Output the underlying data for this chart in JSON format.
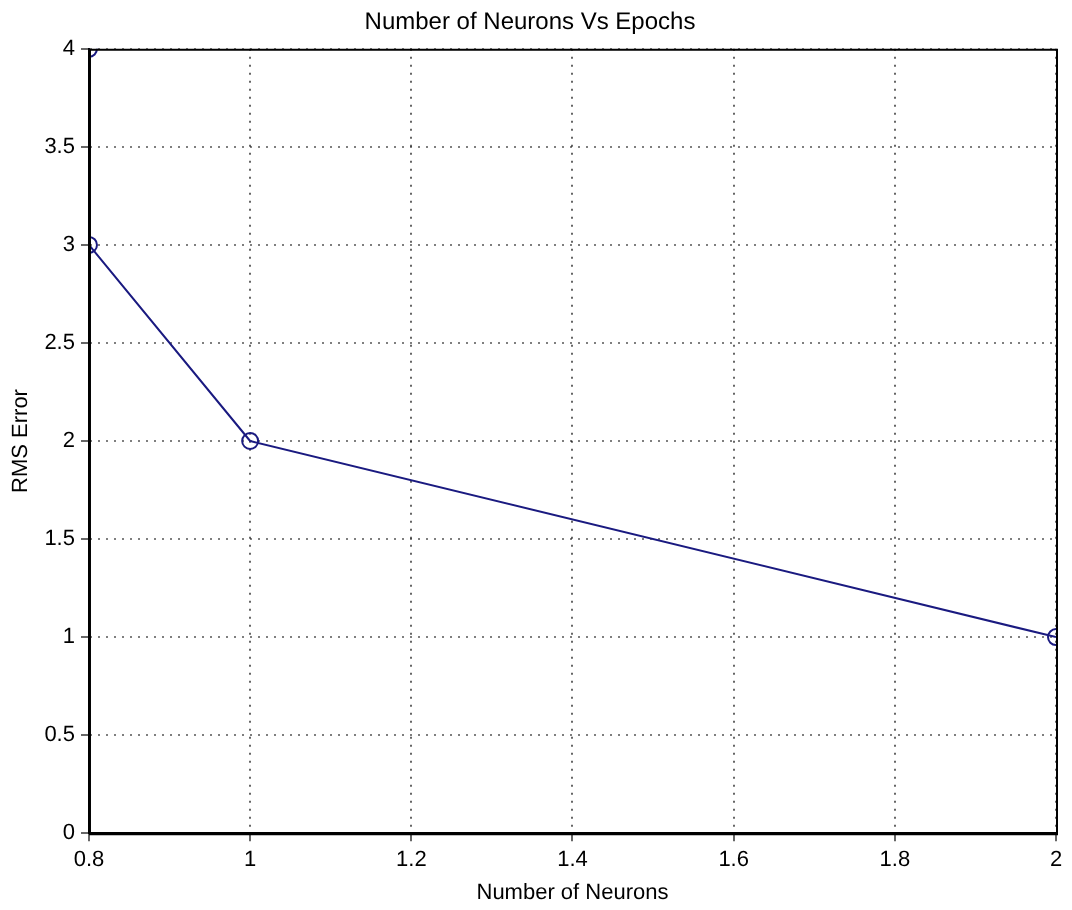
{
  "chart_data": {
    "type": "line",
    "title": "Number of Neurons Vs Epochs",
    "xlabel": "Number of Neurons",
    "ylabel": "RMS Error",
    "x": [
      0.8,
      0.8,
      1,
      2
    ],
    "series": [
      {
        "color": "#1a1a80",
        "values": [
          4,
          3,
          2,
          1
        ]
      }
    ],
    "xlim": [
      0.8,
      2
    ],
    "xticks": [
      0.8,
      1,
      1.2,
      1.4,
      1.6,
      1.8,
      2
    ],
    "ylim": [
      0,
      4
    ],
    "yticks": [
      0,
      0.5,
      1,
      1.5,
      2,
      2.5,
      3,
      3.5,
      4
    ],
    "grid": true,
    "legend": false,
    "marker": "circle",
    "line_style": "solid"
  }
}
